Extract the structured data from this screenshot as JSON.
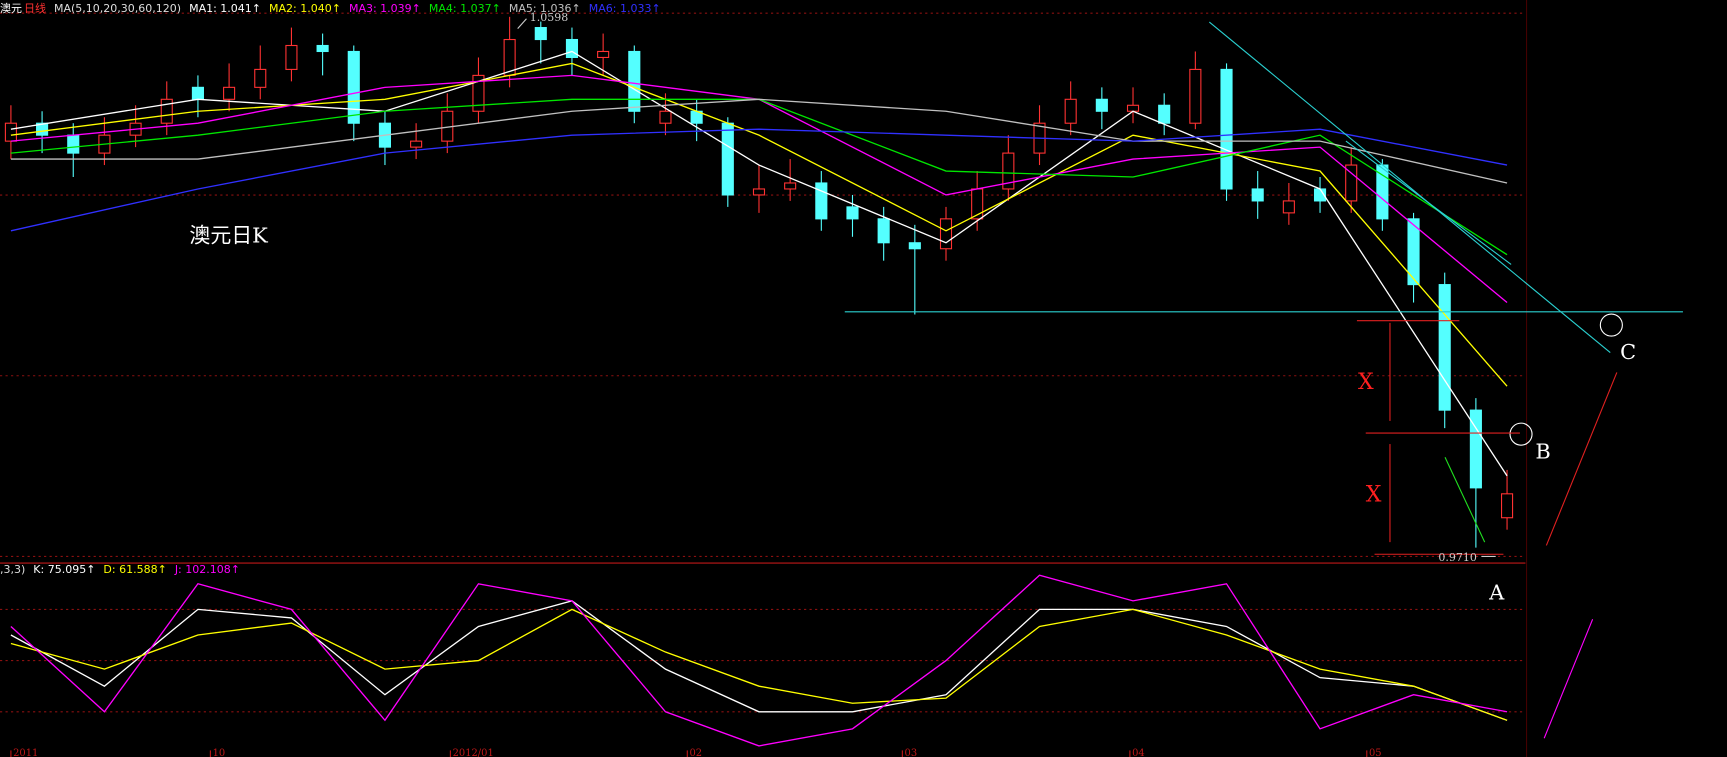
{
  "chart_data": [
    {
      "type": "candlestick",
      "title": "澳元",
      "period": "日线",
      "ma_params": "MA(5,10,20,30,60,120)",
      "up_color": "#ff3232",
      "down_color": "#54ffff",
      "xlim": [
        -0.35,
        48.59
      ],
      "ylim": [
        0.9686,
        1.0604
      ],
      "open": [
        1.039,
        1.042,
        1.04,
        1.037,
        1.04,
        1.042,
        1.048,
        1.046,
        1.048,
        1.051,
        1.055,
        1.054,
        1.042,
        1.038,
        1.039,
        1.044,
        1.05,
        1.058,
        1.056,
        1.053,
        1.054,
        1.042,
        1.044,
        1.042,
        1.03,
        1.031,
        1.032,
        1.028,
        1.026,
        1.022,
        1.021,
        1.026,
        1.031,
        1.037,
        1.042,
        1.046,
        1.044,
        1.045,
        1.042,
        1.051,
        1.031,
        1.027,
        1.031,
        1.029,
        1.035,
        1.026,
        1.015,
        0.994,
        0.976
      ],
      "high": [
        1.045,
        1.044,
        1.042,
        1.043,
        1.045,
        1.049,
        1.05,
        1.052,
        1.055,
        1.058,
        1.057,
        1.055,
        1.044,
        1.042,
        1.047,
        1.053,
        1.0598,
        1.059,
        1.058,
        1.057,
        1.055,
        1.047,
        1.046,
        1.043,
        1.035,
        1.036,
        1.034,
        1.03,
        1.028,
        1.025,
        1.028,
        1.034,
        1.04,
        1.045,
        1.049,
        1.048,
        1.048,
        1.047,
        1.054,
        1.052,
        1.034,
        1.032,
        1.033,
        1.038,
        1.036,
        1.027,
        1.017,
        0.996,
        0.984
      ],
      "low": [
        1.036,
        1.037,
        1.033,
        1.035,
        1.038,
        1.04,
        1.043,
        1.044,
        1.046,
        1.049,
        1.05,
        1.039,
        1.035,
        1.036,
        1.037,
        1.042,
        1.048,
        1.052,
        1.05,
        1.05,
        1.042,
        1.04,
        1.039,
        1.028,
        1.027,
        1.029,
        1.024,
        1.023,
        1.019,
        1.01,
        1.019,
        1.024,
        1.029,
        1.035,
        1.04,
        1.041,
        1.042,
        1.04,
        1.041,
        1.029,
        1.026,
        1.025,
        1.027,
        1.027,
        1.024,
        1.012,
        0.991,
        0.971,
        0.974
      ],
      "close": [
        1.042,
        1.04,
        1.037,
        1.04,
        1.042,
        1.046,
        1.046,
        1.048,
        1.051,
        1.055,
        1.054,
        1.042,
        1.038,
        1.039,
        1.044,
        1.05,
        1.056,
        1.056,
        1.053,
        1.054,
        1.044,
        1.044,
        1.042,
        1.03,
        1.031,
        1.032,
        1.026,
        1.026,
        1.022,
        1.021,
        1.026,
        1.031,
        1.037,
        1.042,
        1.046,
        1.044,
        1.045,
        1.042,
        1.051,
        1.031,
        1.029,
        1.029,
        1.029,
        1.035,
        1.026,
        1.015,
        0.994,
        0.981,
        0.98
      ],
      "series": [
        {
          "name": "MA1: 1.041↑",
          "color": "#ffffff",
          "x": [
            0,
            6,
            12,
            18,
            24,
            30,
            36,
            42,
            48
          ],
          "values": [
            1.041,
            1.046,
            1.044,
            1.054,
            1.035,
            1.022,
            1.044,
            1.031,
            0.983
          ]
        },
        {
          "name": "MA2: 1.040↑",
          "color": "#ffff00",
          "x": [
            0,
            6,
            12,
            18,
            24,
            30,
            36,
            42,
            48
          ],
          "values": [
            1.04,
            1.044,
            1.046,
            1.052,
            1.04,
            1.024,
            1.04,
            1.034,
            0.998
          ]
        },
        {
          "name": "MA3: 1.039↑",
          "color": "#ff00ff",
          "x": [
            0,
            6,
            12,
            18,
            24,
            30,
            36,
            42,
            48
          ],
          "values": [
            1.039,
            1.042,
            1.048,
            1.05,
            1.046,
            1.03,
            1.036,
            1.038,
            1.012
          ]
        },
        {
          "name": "MA4: 1.037↑",
          "color": "#00e600",
          "x": [
            0,
            6,
            12,
            18,
            24,
            30,
            36,
            42,
            48
          ],
          "values": [
            1.037,
            1.04,
            1.044,
            1.046,
            1.046,
            1.034,
            1.033,
            1.04,
            1.02
          ]
        },
        {
          "name": "MA5: 1.036↑",
          "color": "#c0c0c0",
          "x": [
            0,
            6,
            12,
            18,
            24,
            30,
            36,
            42,
            48
          ],
          "values": [
            1.036,
            1.036,
            1.04,
            1.044,
            1.046,
            1.044,
            1.039,
            1.039,
            1.032
          ]
        },
        {
          "name": "MA6: 1.033↑",
          "color": "#3030ff",
          "x": [
            0,
            6,
            12,
            18,
            24,
            30,
            36,
            42,
            48
          ],
          "values": [
            1.024,
            1.031,
            1.037,
            1.04,
            1.041,
            1.04,
            1.039,
            1.041,
            1.035
          ]
        }
      ],
      "annotations": {
        "label": "澳元日K",
        "high_label": "1.0598",
        "low_label": "0.9710",
        "x_upper": "X",
        "x_lower": "X",
        "a": "A",
        "b": "B",
        "c": "C"
      }
    },
    {
      "type": "line",
      "params": ",3,3)",
      "xlim": [
        -0.35,
        48.59
      ],
      "ylim": [
        -6.5,
        106.5
      ],
      "levels": [
        20,
        50,
        80
      ],
      "xticks": [
        {
          "value": 0,
          "label": "2011"
        },
        {
          "value": 6.4,
          "label": "10"
        },
        {
          "value": 14.1,
          "label": "2012/01"
        },
        {
          "value": 21.7,
          "label": "02"
        },
        {
          "value": 28.6,
          "label": "03"
        },
        {
          "value": 35.9,
          "label": "04"
        },
        {
          "value": 43.5,
          "label": "05"
        }
      ],
      "series": [
        {
          "name": "K: 75.095↑",
          "color": "#ffffff",
          "x": [
            0,
            3,
            6,
            9,
            12,
            15,
            18,
            21,
            24,
            27,
            30,
            33,
            36,
            39,
            42,
            45,
            48
          ],
          "values": [
            65,
            35,
            80,
            75,
            30,
            70,
            85,
            45,
            20,
            20,
            30,
            80,
            80,
            70,
            40,
            35,
            15
          ]
        },
        {
          "name": "D: 61.588↑",
          "color": "#ffff00",
          "x": [
            0,
            3,
            6,
            9,
            12,
            15,
            18,
            21,
            24,
            27,
            30,
            33,
            36,
            39,
            42,
            45,
            48
          ],
          "values": [
            60,
            45,
            65,
            72,
            45,
            50,
            80,
            55,
            35,
            25,
            28,
            70,
            80,
            65,
            45,
            35,
            15
          ]
        },
        {
          "name": "J: 102.108↑",
          "color": "#ff00ff",
          "x": [
            0,
            3,
            6,
            9,
            12,
            15,
            18,
            21,
            24,
            27,
            30,
            33,
            36,
            39,
            42,
            45,
            48
          ],
          "values": [
            70,
            20,
            95,
            80,
            15,
            95,
            85,
            20,
            0,
            10,
            50,
            100,
            85,
            95,
            10,
            30,
            20
          ]
        }
      ]
    }
  ]
}
